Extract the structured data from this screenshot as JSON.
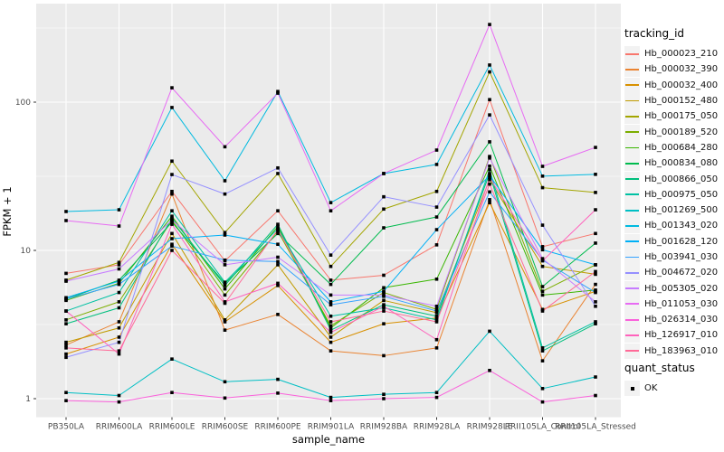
{
  "chart_data": {
    "type": "line",
    "title": "",
    "xlabel": "sample_name",
    "ylabel": "FPKM + 1",
    "y_scale": "log10",
    "y_ticks": [
      1,
      10,
      100
    ],
    "y_tick_labels": [
      "1",
      "10",
      "100"
    ],
    "y_minor_breaks": [
      3.1623,
      31.623,
      316.23
    ],
    "ylim": [
      0.85,
      430
    ],
    "grid": true,
    "legend_position": "right",
    "marker": "black-square",
    "categories": [
      "PB350LA",
      "RRIM600LA",
      "RRIM600LE",
      "RRIM600SE",
      "RRIM600PE",
      "RRIM901LA",
      "RRIM928BA",
      "RRIM928LA",
      "RRIM928LE",
      "RRII105LA_Control",
      "RRII105LA_Stressed"
    ],
    "series": [
      {
        "name": "Hb_000023_210",
        "color": "#F8766D",
        "values": [
          7.0,
          8.0,
          25,
          8.5,
          18.5,
          6.3,
          6.8,
          10.9,
          104,
          10.6,
          13.0
        ]
      },
      {
        "name": "Hb_000032_390",
        "color": "#EA8331",
        "values": [
          2.3,
          3.3,
          24,
          2.9,
          3.7,
          2.1,
          1.95,
          2.2,
          22,
          1.8,
          5.9
        ]
      },
      {
        "name": "Hb_000032_400",
        "color": "#D89000",
        "values": [
          2.0,
          2.6,
          11,
          3.3,
          5.8,
          2.4,
          3.2,
          3.5,
          21,
          4.0,
          5.3
        ]
      },
      {
        "name": "Hb_000152_480",
        "color": "#C09B00",
        "values": [
          2.4,
          3.0,
          13,
          3.4,
          8.0,
          2.6,
          4.6,
          3.8,
          30,
          7.8,
          6.9
        ]
      },
      {
        "name": "Hb_000175_050",
        "color": "#A3A500",
        "values": [
          6.3,
          8.3,
          40,
          13.2,
          33,
          7.8,
          19,
          25,
          160,
          26.5,
          24.6
        ]
      },
      {
        "name": "Hb_000189_520",
        "color": "#7CAE00",
        "values": [
          3.4,
          4.5,
          16,
          5.0,
          13.5,
          3.1,
          5.2,
          4.0,
          43,
          5.3,
          8.0
        ]
      },
      {
        "name": "Hb_000684_280",
        "color": "#39B600",
        "values": [
          4.6,
          6.0,
          17,
          5.5,
          14.5,
          3.0,
          5.6,
          6.4,
          37,
          5.0,
          5.4
        ]
      },
      {
        "name": "Hb_000834_080",
        "color": "#00BB4E",
        "values": [
          4.7,
          6.3,
          15.5,
          6.0,
          13,
          5.9,
          14.2,
          16.8,
          54,
          5.7,
          11.2
        ]
      },
      {
        "name": "Hb_000866_050",
        "color": "#00BF7D",
        "values": [
          3.2,
          4.1,
          16.5,
          5.8,
          15,
          2.9,
          4.3,
          3.6,
          33,
          2.1,
          3.2
        ]
      },
      {
        "name": "Hb_000975_050",
        "color": "#00C1A3",
        "values": [
          3.9,
          5.2,
          18.5,
          6.1,
          14,
          3.6,
          4.1,
          3.4,
          35,
          2.2,
          3.3
        ]
      },
      {
        "name": "Hb_001269_500",
        "color": "#00BFC4",
        "values": [
          1.1,
          1.05,
          1.85,
          1.3,
          1.35,
          1.02,
          1.07,
          1.1,
          2.85,
          1.17,
          1.4
        ]
      },
      {
        "name": "Hb_001343_020",
        "color": "#00BAE0",
        "values": [
          18.3,
          18.8,
          92,
          29.5,
          118,
          21,
          33,
          38,
          178,
          31.7,
          32.6
        ]
      },
      {
        "name": "Hb_001628_120",
        "color": "#00B0F6",
        "values": [
          4.8,
          6.2,
          12,
          12.7,
          11,
          4.5,
          5.3,
          13.8,
          32,
          10.1,
          8.0
        ]
      },
      {
        "name": "Hb_003941_030",
        "color": "#35A2FF",
        "values": [
          4.7,
          5.9,
          10.7,
          8.6,
          8.4,
          4.3,
          4.9,
          3.9,
          24.8,
          8.6,
          5.2
        ]
      },
      {
        "name": "Hb_004672_020",
        "color": "#9590FF",
        "values": [
          1.9,
          2.4,
          32.5,
          24,
          36,
          9.3,
          23,
          19.6,
          82,
          14.8,
          4.2
        ]
      },
      {
        "name": "Hb_005305_020",
        "color": "#C77CFF",
        "values": [
          6.2,
          7.5,
          16,
          8.0,
          9.0,
          5.0,
          5.0,
          4.2,
          42,
          8.8,
          4.5
        ]
      },
      {
        "name": "Hb_011053_030",
        "color": "#E76BF3",
        "values": [
          15.9,
          14.6,
          125,
          50,
          115,
          18.5,
          33,
          47.5,
          334,
          36.9,
          49.5
        ]
      },
      {
        "name": "Hb_026314_030",
        "color": "#FA62DB",
        "values": [
          0.97,
          0.95,
          1.1,
          1.01,
          1.09,
          0.97,
          1.0,
          1.02,
          1.55,
          0.95,
          1.05
        ]
      },
      {
        "name": "Hb_126917_010",
        "color": "#FF62BC",
        "values": [
          3.9,
          2.0,
          15,
          4.5,
          6.0,
          2.8,
          4.2,
          2.5,
          31,
          8.5,
          18.8
        ]
      },
      {
        "name": "Hb_183963_010",
        "color": "#FF6A98",
        "values": [
          2.2,
          2.1,
          10,
          4.4,
          13.8,
          3.3,
          3.9,
          3.3,
          28,
          3.9,
          7.2
        ]
      }
    ]
  },
  "legend": {
    "tracking_title": "tracking_id",
    "quant_title": "quant_status",
    "quant_items": [
      "OK"
    ]
  },
  "theme": {
    "panel_bg": "#EBEBEB",
    "grid_major": "#FFFFFF",
    "grid_minor": "#FFFFFF",
    "axis_text": "#4D4D4D",
    "tick_mark": "#333333",
    "marker_color": "#000000",
    "legend_key_bg": "#F2F2F2"
  }
}
